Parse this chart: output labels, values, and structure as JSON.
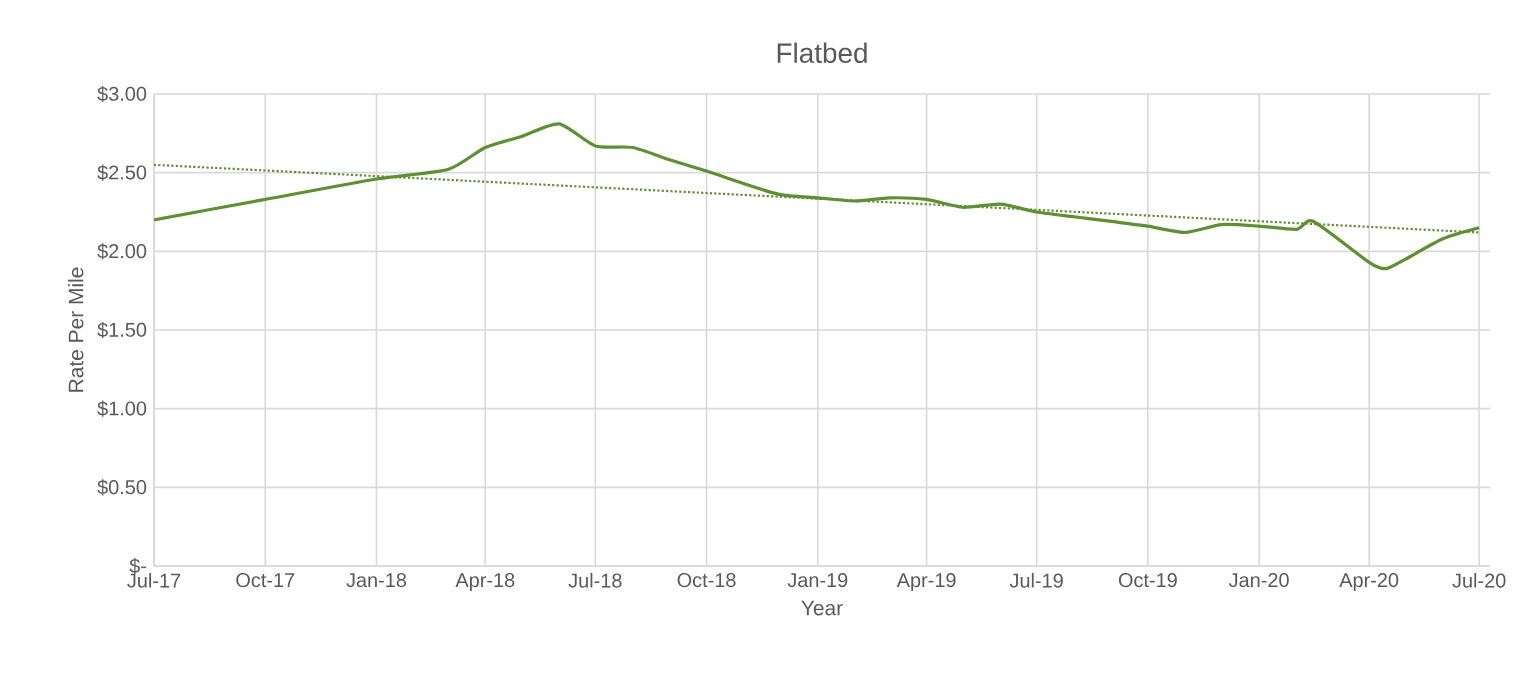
{
  "chart_data": {
    "type": "line",
    "title": "Flatbed",
    "xlabel": "Year",
    "ylabel": "Rate Per Mile",
    "xlim": [
      "2017-07-01",
      "2020-07-10"
    ],
    "ylim": [
      0,
      3
    ],
    "xticks": [
      {
        "value": "2017-07-01",
        "label": "Jul-17"
      },
      {
        "value": "2017-10-01",
        "label": "Oct-17"
      },
      {
        "value": "2018-01-01",
        "label": "Jan-18"
      },
      {
        "value": "2018-04-01",
        "label": "Apr-18"
      },
      {
        "value": "2018-07-01",
        "label": "Jul-18"
      },
      {
        "value": "2018-10-01",
        "label": "Oct-18"
      },
      {
        "value": "2019-01-01",
        "label": "Jan-19"
      },
      {
        "value": "2019-04-01",
        "label": "Apr-19"
      },
      {
        "value": "2019-07-01",
        "label": "Jul-19"
      },
      {
        "value": "2019-10-01",
        "label": "Oct-19"
      },
      {
        "value": "2020-01-01",
        "label": "Jan-20"
      },
      {
        "value": "2020-04-01",
        "label": "Apr-20"
      },
      {
        "value": "2020-07-01",
        "label": "Jul-20"
      }
    ],
    "yticks": [
      {
        "value": 0,
        "label": "$-"
      },
      {
        "value": 0.5,
        "label": "$0.50"
      },
      {
        "value": 1,
        "label": "$1.00"
      },
      {
        "value": 1.5,
        "label": "$1.50"
      },
      {
        "value": 2,
        "label": "$2.00"
      },
      {
        "value": 2.5,
        "label": "$2.50"
      },
      {
        "value": 3,
        "label": "$3.00"
      }
    ],
    "grid": true,
    "marker": "none",
    "series": [
      {
        "color": "#5e8f32",
        "line_style": "solid",
        "x": [
          "2017-07-01",
          "2017-10-01",
          "2018-01-01",
          "2018-03-01",
          "2018-04-01",
          "2018-05-01",
          "2018-06-01",
          "2018-07-01",
          "2018-08-01",
          "2018-09-01",
          "2018-10-01",
          "2018-11-01",
          "2018-12-01",
          "2019-01-01",
          "2019-02-01",
          "2019-03-01",
          "2019-04-01",
          "2019-05-01",
          "2019-06-01",
          "2019-07-01",
          "2019-08-01",
          "2019-09-01",
          "2019-10-01",
          "2019-11-01",
          "2019-12-01",
          "2020-01-01",
          "2020-02-01",
          "2020-02-15",
          "2020-04-01",
          "2020-04-15",
          "2020-05-01",
          "2020-06-01",
          "2020-07-01"
        ],
        "values": [
          2.2,
          2.33,
          2.46,
          2.52,
          2.66,
          2.73,
          2.81,
          2.67,
          2.66,
          2.58,
          2.51,
          2.43,
          2.36,
          2.34,
          2.32,
          2.34,
          2.33,
          2.28,
          2.3,
          2.25,
          2.22,
          2.19,
          2.16,
          2.12,
          2.17,
          2.16,
          2.14,
          2.19,
          1.93,
          1.89,
          1.95,
          2.08,
          2.15
        ]
      },
      {
        "type": "line",
        "color": "#5e8f32",
        "line_style": "dotted",
        "x": [
          "2017-07-01",
          "2020-07-01"
        ],
        "values": [
          2.55,
          2.12
        ]
      }
    ]
  }
}
